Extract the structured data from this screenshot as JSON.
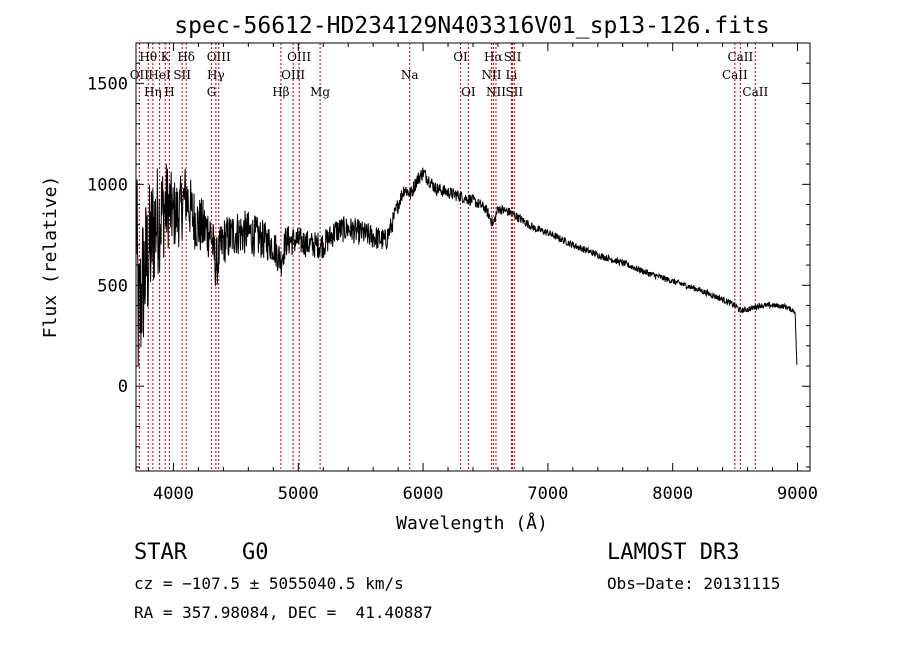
{
  "chart_data": {
    "type": "line",
    "title": "spec-56612-HD234129N403316V01_sp13-126.fits",
    "xlabel": "Wavelength (Å)",
    "ylabel": "Flux (relative)",
    "xlim": [
      3700,
      9100
    ],
    "ylim": [
      -420,
      1700
    ],
    "x_ticks": [
      4000,
      5000,
      6000,
      7000,
      8000,
      9000
    ],
    "y_ticks": [
      0,
      500,
      1000,
      1500
    ],
    "x_tick_labels": [
      "4000",
      "5000",
      "6000",
      "7000",
      "8000",
      "9000"
    ],
    "y_tick_labels": [
      "0",
      "500",
      "1000",
      "1500"
    ],
    "spectrum_anchors": {
      "x": [
        3700,
        3720,
        3750,
        3800,
        3850,
        3900,
        3950,
        4000,
        4050,
        4100,
        4150,
        4200,
        4300,
        4340,
        4400,
        4500,
        4600,
        4700,
        4800,
        4861,
        4900,
        5000,
        5100,
        5200,
        5300,
        5400,
        5500,
        5600,
        5700,
        5750,
        5800,
        5850,
        5900,
        5950,
        6000,
        6050,
        6100,
        6200,
        6300,
        6400,
        6500,
        6563,
        6600,
        6700,
        6800,
        6900,
        7000,
        7200,
        7400,
        7600,
        7800,
        8000,
        8200,
        8400,
        8500,
        8542,
        8600,
        8700,
        8800,
        8900,
        8980,
        8990,
        8995
      ],
      "y": [
        900,
        300,
        500,
        650,
        800,
        850,
        900,
        850,
        860,
        950,
        850,
        800,
        760,
        600,
        720,
        760,
        760,
        730,
        700,
        620,
        720,
        720,
        700,
        700,
        770,
        780,
        760,
        740,
        720,
        800,
        900,
        980,
        950,
        1020,
        1060,
        1020,
        980,
        960,
        940,
        920,
        880,
        800,
        880,
        860,
        820,
        780,
        760,
        700,
        650,
        610,
        560,
        520,
        480,
        430,
        400,
        375,
        380,
        400,
        400,
        395,
        370,
        200,
        100
      ],
      "noise_amplitude": {
        "x": [
          3700,
          3800,
          4000,
          4200,
          4400,
          4600,
          5000,
          5700,
          5800,
          6000,
          6600,
          7000,
          8000,
          8500,
          9000
        ],
        "y": [
          400,
          350,
          180,
          150,
          120,
          110,
          70,
          60,
          40,
          35,
          25,
          18,
          15,
          15,
          12
        ]
      }
    },
    "line_markers": [
      {
        "label": "Hθ",
        "x": 3798,
        "row": 0
      },
      {
        "label": "OII",
        "x": 3727,
        "row": 1
      },
      {
        "label": "Hη",
        "x": 3835,
        "row": 2
      },
      {
        "label": "K",
        "x": 3934,
        "row": 0
      },
      {
        "label": "HeI",
        "x": 3889,
        "row": 1
      },
      {
        "label": "H",
        "x": 3968,
        "row": 2
      },
      {
        "label": "Hδ",
        "x": 4102,
        "row": 0
      },
      {
        "label": "SII",
        "x": 4070,
        "row": 1
      },
      {
        "label": "OIII",
        "x": 4363,
        "row": 0
      },
      {
        "label": "Hγ",
        "x": 4340,
        "row": 1
      },
      {
        "label": "G",
        "x": 4305,
        "row": 2
      },
      {
        "label": "Hβ",
        "x": 4861,
        "row": 2
      },
      {
        "label": "OIII",
        "x": 5007,
        "row": 0
      },
      {
        "label": "OIII",
        "x": 4959,
        "row": 1
      },
      {
        "label": "Mg",
        "x": 5175,
        "row": 2
      },
      {
        "label": "Na",
        "x": 5893,
        "row": 1
      },
      {
        "label": "OI",
        "x": 6300,
        "row": 0
      },
      {
        "label": "OI",
        "x": 6363,
        "row": 2
      },
      {
        "label": "Hα",
        "x": 6563,
        "row": 0
      },
      {
        "label": "NII",
        "x": 6548,
        "row": 1
      },
      {
        "label": "NII",
        "x": 6584,
        "row": 2
      },
      {
        "label": "SII",
        "x": 6717,
        "row": 0
      },
      {
        "label": "Li",
        "x": 6708,
        "row": 1
      },
      {
        "label": "SII",
        "x": 6731,
        "row": 2
      },
      {
        "label": "CaII",
        "x": 8542,
        "row": 0
      },
      {
        "label": "CaII",
        "x": 8498,
        "row": 1
      },
      {
        "label": "CaII",
        "x": 8662,
        "row": 2
      }
    ]
  },
  "info": {
    "object_class": "STAR",
    "subclass": "G0",
    "survey": "LAMOST DR3",
    "redshift_line": "cz = −107.5 ± 5055040.5 km/s",
    "obs_date_line": "Obs−Date: 20131115",
    "coords_line": "RA = 357.98084, DEC =  41.40887"
  },
  "colors": {
    "ink": "#000000",
    "marker_line": "#cc0000",
    "background": "#ffffff"
  }
}
